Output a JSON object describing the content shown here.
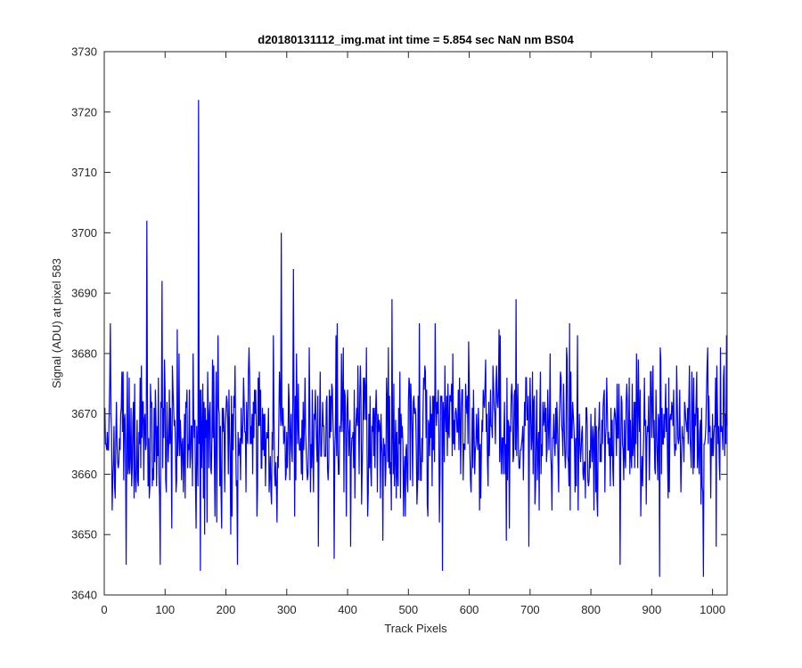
{
  "chart_data": {
    "type": "line",
    "title": "d20180131112_img.mat int time = 5.854 sec  NaN nm BS04",
    "xlabel": "Track Pixels",
    "ylabel": "Signal (ADU) at pixel 583",
    "xlim": [
      0,
      1024
    ],
    "ylim": [
      3640,
      3730
    ],
    "xticks": [
      0,
      100,
      200,
      300,
      400,
      500,
      600,
      700,
      800,
      900,
      1000
    ],
    "yticks": [
      3640,
      3650,
      3660,
      3670,
      3680,
      3690,
      3700,
      3710,
      3720,
      3730
    ],
    "grid": false,
    "legend": "none",
    "series": [
      {
        "color": "#0000ff",
        "x_start": 1,
        "x_step": 1,
        "point_count": 1024,
        "baseline_mean": 3667,
        "noise_std": 6.5,
        "notable_points": [
          {
            "x": 10,
            "y": 3685
          },
          {
            "x": 13,
            "y": 3654
          },
          {
            "x": 36,
            "y": 3645
          },
          {
            "x": 70,
            "y": 3702
          },
          {
            "x": 92,
            "y": 3645
          },
          {
            "x": 95,
            "y": 3692
          },
          {
            "x": 155,
            "y": 3722
          },
          {
            "x": 158,
            "y": 3644
          },
          {
            "x": 219,
            "y": 3645
          },
          {
            "x": 291,
            "y": 3700
          },
          {
            "x": 311,
            "y": 3694
          },
          {
            "x": 378,
            "y": 3646
          },
          {
            "x": 473,
            "y": 3689
          },
          {
            "x": 556,
            "y": 3644
          },
          {
            "x": 677,
            "y": 3689
          },
          {
            "x": 848,
            "y": 3645
          },
          {
            "x": 913,
            "y": 3643
          },
          {
            "x": 985,
            "y": 3643
          },
          {
            "x": 1013,
            "y": 3681
          }
        ]
      }
    ]
  }
}
